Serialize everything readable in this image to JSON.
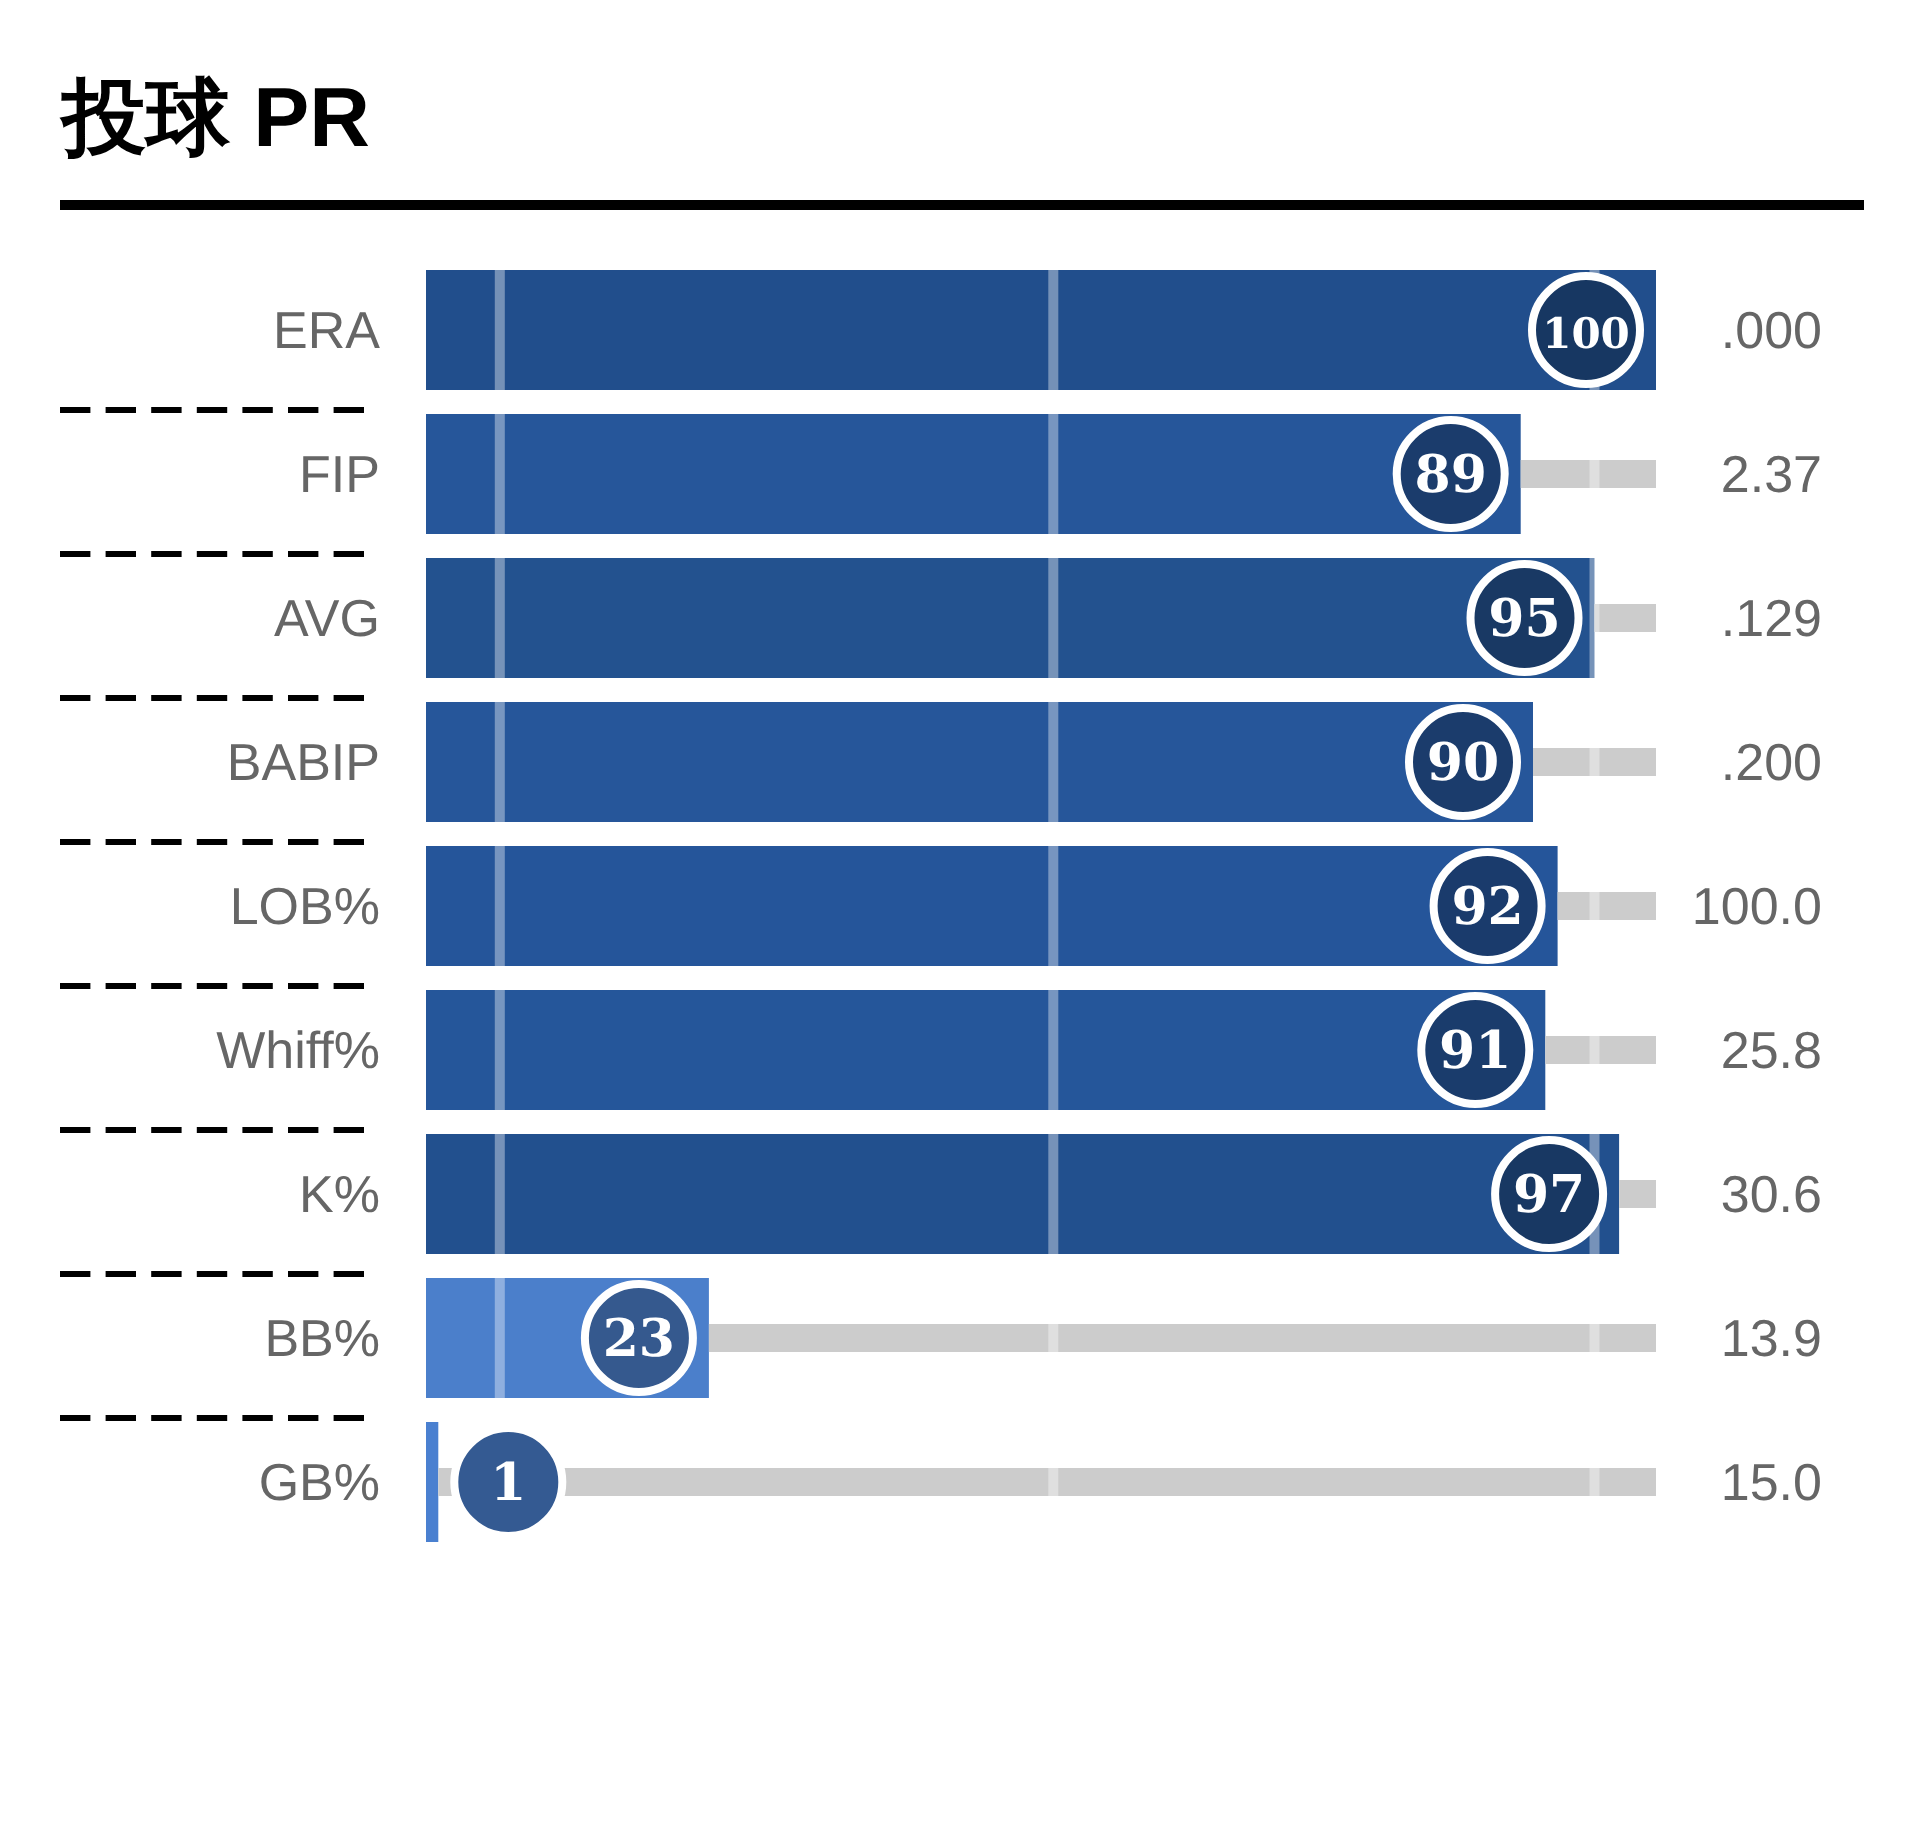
{
  "chart_data": {
    "type": "bar",
    "orientation": "horizontal",
    "stacked": true,
    "title": "投球 PR",
    "categories": [
      "ERA",
      "FIP",
      "AVG",
      "BABIP",
      "LOB%",
      "Whiff%",
      "K%",
      "BB%",
      "GB%"
    ],
    "y2_categories": [
      ".000",
      "2.37",
      ".129",
      ".200",
      "100.0",
      "25.8",
      "30.6",
      "13.9",
      "15.0"
    ],
    "series": [
      {
        "colors": [
          "#214e8c",
          "#26569a",
          "#23528f",
          "#26569a",
          "#25559a",
          "#25569a",
          "#22508e",
          "#4b7fcb",
          "#4a80d0"
        ],
        "values": [
          100,
          89,
          95,
          90,
          92,
          91,
          97,
          23,
          1
        ],
        "value_labels": [
          "100",
          "89",
          "95",
          "90",
          "92",
          "91",
          "97",
          "23",
          "1"
        ]
      },
      {
        "color": "#cccccc",
        "values": [
          null,
          11,
          5,
          10,
          8,
          9,
          3,
          77,
          99
        ]
      }
    ],
    "xticks": [
      {
        "value": 6,
        "label": null
      },
      {
        "value": 51,
        "label": null
      },
      {
        "value": 95,
        "label": null
      }
    ],
    "grid": "x",
    "tick_labels": "y"
  }
}
